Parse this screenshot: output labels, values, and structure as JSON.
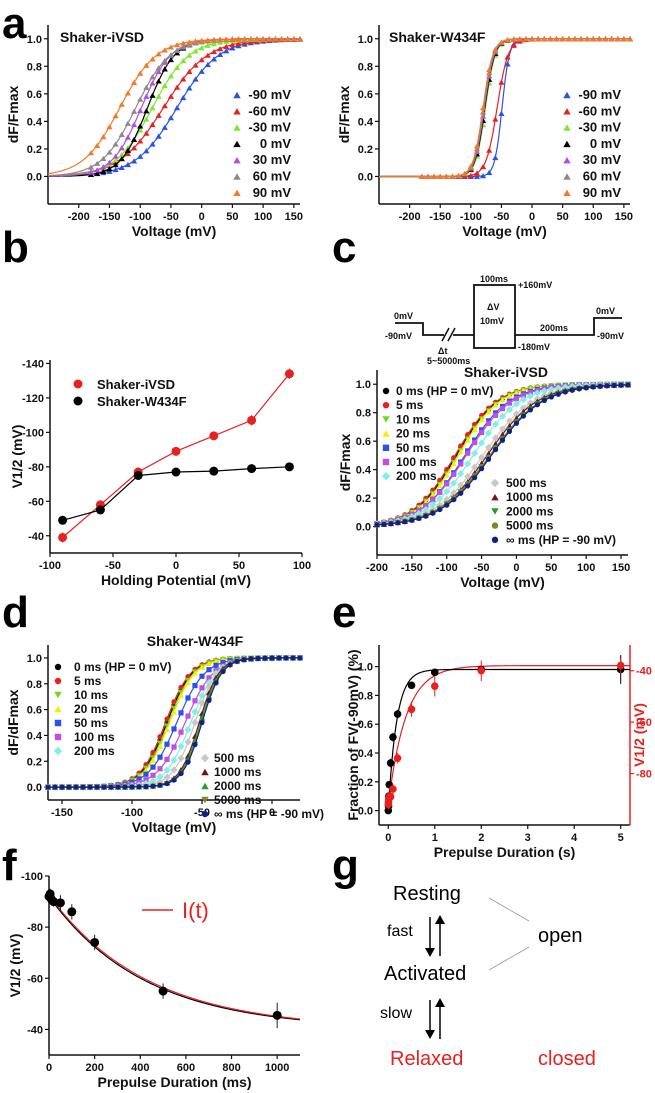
{
  "panel_letters": {
    "a": "a",
    "b": "b",
    "c": "c",
    "d": "d",
    "e": "e",
    "f": "f",
    "g": "g"
  },
  "colors": {
    "blue": "#2a52e8",
    "red": "#e82020",
    "green": "#7ee82a",
    "black": "#000000",
    "purple": "#b24fe0",
    "gray": "#8a8a8a",
    "orange": "#f07a2a",
    "c_black": "#000000",
    "c_red": "#e82020",
    "c_green": "#6dd820",
    "c_yellow": "#f2f200",
    "c_blue": "#2a52e8",
    "c_purple": "#c04ee0",
    "c_cyan": "#7ff0e6",
    "c_lgray": "#c8c8c8",
    "c_darkred": "#7a1010",
    "c_dgreen": "#2a9a2a",
    "c_olive": "#7a8a20",
    "c_navy": "#10208a"
  },
  "chart_data": [
    {
      "id": "a1",
      "type": "scatter",
      "title": "Shaker-iVSD",
      "xlabel": "Voltage (mV)",
      "ylabel": "dF/Fmax",
      "xlim": [
        -250,
        160
      ],
      "ylim": [
        -0.2,
        1.1
      ],
      "xticks": [
        -200,
        -150,
        -100,
        -50,
        0,
        50,
        100,
        150
      ],
      "yticks": [
        0.0,
        0.2,
        0.4,
        0.6,
        0.8,
        1.0
      ],
      "ytick_labels": [
        "0.0",
        "0.2",
        "0.4",
        "0.6",
        "0.8",
        "1.0"
      ],
      "marker": "triangle",
      "legend_position": "right",
      "series": [
        {
          "name": "-90 mV",
          "color": "#2a52e8",
          "v_half": -40,
          "slope": 34
        },
        {
          "name": "-60 mV",
          "color": "#e82020",
          "v_half": -62,
          "slope": 36
        },
        {
          "name": "-30 mV",
          "color": "#7ee82a",
          "v_half": -80,
          "slope": 30
        },
        {
          "name": "0 mV",
          "color": "#000000",
          "v_half": -88,
          "slope": 22
        },
        {
          "name": "30 mV",
          "color": "#b24fe0",
          "v_half": -98,
          "slope": 24
        },
        {
          "name": "60 mV",
          "color": "#8a8a8a",
          "v_half": -107,
          "slope": 28
        },
        {
          "name": "90 mV",
          "color": "#f07a2a",
          "v_half": -133,
          "slope": 30
        }
      ]
    },
    {
      "id": "a2",
      "type": "scatter",
      "title": "Shaker-W434F",
      "xlabel": "Voltage (mV)",
      "ylabel": "dF/Fmax",
      "xlim": [
        -250,
        160
      ],
      "ylim": [
        -0.2,
        1.1
      ],
      "xticks": [
        -200,
        -150,
        -100,
        -50,
        0,
        50,
        100,
        150
      ],
      "yticks": [
        0.0,
        0.2,
        0.4,
        0.6,
        0.8,
        1.0
      ],
      "ytick_labels": [
        "0.0",
        "0.2",
        "0.4",
        "0.6",
        "0.8",
        "1.0"
      ],
      "marker": "triangle",
      "legend_position": "right",
      "series": [
        {
          "name": "-90 mV",
          "color": "#2a52e8",
          "v_half": -49,
          "slope": 6
        },
        {
          "name": "-60 mV",
          "color": "#e82020",
          "v_half": -57,
          "slope": 9
        },
        {
          "name": "-30 mV",
          "color": "#7ee82a",
          "v_half": -76,
          "slope": 8
        },
        {
          "name": "0 mV",
          "color": "#000000",
          "v_half": -77,
          "slope": 8
        },
        {
          "name": "30 mV",
          "color": "#b24fe0",
          "v_half": -78,
          "slope": 8
        },
        {
          "name": "60 mV",
          "color": "#8a8a8a",
          "v_half": -79,
          "slope": 8
        },
        {
          "name": "90 mV",
          "color": "#f07a2a",
          "v_half": -80,
          "slope": 8
        }
      ]
    },
    {
      "id": "b",
      "type": "line",
      "xlabel": "Holding Potential (mV)",
      "ylabel": "V1/2 (mV)",
      "xlim": [
        -100,
        100
      ],
      "ylim": [
        -30,
        -142
      ],
      "xticks": [
        -100,
        -50,
        0,
        50,
        100
      ],
      "yticks": [
        -40,
        -60,
        -80,
        -100,
        -120,
        -140
      ],
      "x": [
        -90,
        -60,
        -30,
        0,
        30,
        60,
        90
      ],
      "legend_position": "top-left",
      "series": [
        {
          "name": "Shaker-iVSD",
          "color": "#e82020",
          "values": [
            -39,
            -58,
            -77,
            -89,
            -98,
            -107,
            -134
          ],
          "err": [
            3,
            2,
            1,
            1,
            1.5,
            3,
            3
          ]
        },
        {
          "name": "Shaker-W434F",
          "color": "#000000",
          "values": [
            -49,
            -55,
            -75,
            -77,
            -77.5,
            -79,
            -80
          ],
          "err": [
            1,
            2,
            1,
            1,
            1,
            1,
            1
          ]
        }
      ]
    },
    {
      "id": "c",
      "type": "scatter",
      "title": "Shaker-iVSD",
      "xlabel": "Voltage (mV)",
      "ylabel": "dF/Fmax",
      "xlim": [
        -200,
        160
      ],
      "ylim": [
        -0.2,
        1.1
      ],
      "xticks": [
        -200,
        -150,
        -100,
        -50,
        0,
        50,
        100,
        150
      ],
      "yticks": [
        0.0,
        0.2,
        0.4,
        0.6,
        0.8,
        1.0
      ],
      "ytick_labels": [
        "0.0",
        "0.2",
        "0.4",
        "0.6",
        "0.8",
        "1.0"
      ],
      "legend_position": "left / bottom-right",
      "series": [
        {
          "name": "0 ms (HP = 0 mV)",
          "color": "#000000",
          "marker": "circle",
          "v_half": -86,
          "slope": 30
        },
        {
          "name": "5 ms",
          "color": "#e82020",
          "marker": "circle",
          "v_half": -88,
          "slope": 30
        },
        {
          "name": "10 ms",
          "color": "#6dd820",
          "marker": "tri-down",
          "v_half": -84,
          "slope": 30
        },
        {
          "name": "20 ms",
          "color": "#f2f200",
          "marker": "triangle",
          "v_half": -83,
          "slope": 30
        },
        {
          "name": "50 ms",
          "color": "#2a52e8",
          "marker": "square",
          "v_half": -74,
          "slope": 32
        },
        {
          "name": "100 ms",
          "color": "#c04ee0",
          "marker": "square",
          "v_half": -72,
          "slope": 33
        },
        {
          "name": "200 ms",
          "color": "#7ff0e6",
          "marker": "diamond",
          "v_half": -62,
          "slope": 34
        },
        {
          "name": "500 ms",
          "color": "#c8c8c8",
          "marker": "diamond",
          "v_half": -48,
          "slope": 36
        },
        {
          "name": "1000 ms",
          "color": "#7a1010",
          "marker": "triangle",
          "v_half": -42,
          "slope": 36
        },
        {
          "name": "2000 ms",
          "color": "#2a9a2a",
          "marker": "tri-down",
          "v_half": -38,
          "slope": 37
        },
        {
          "name": "5000 ms",
          "color": "#7a8a20",
          "marker": "circle",
          "v_half": -38,
          "slope": 38
        },
        {
          "name": "∞ ms (HP = -90 mV)",
          "color": "#10208a",
          "marker": "circle",
          "v_half": -36,
          "slope": 37
        }
      ]
    },
    {
      "id": "d",
      "type": "scatter",
      "title": "Shaker-W434F",
      "xlabel": "Voltage (mV)",
      "ylabel": "dF/dFmax",
      "xlim": [
        -160,
        20
      ],
      "ylim": [
        -0.1,
        1.1
      ],
      "xticks": [
        -150,
        -100,
        -50,
        0
      ],
      "yticks": [
        0.0,
        0.2,
        0.4,
        0.6,
        0.8,
        1.0
      ],
      "ytick_labels": [
        "0.0",
        "0.2",
        "0.4",
        "0.6",
        "0.8",
        "1.0"
      ],
      "legend_position": "left / bottom-right",
      "series": [
        {
          "name": "0 ms (HP = 0 mV)",
          "color": "#000000",
          "marker": "circle",
          "v_half": -75,
          "slope": 9
        },
        {
          "name": "5 ms",
          "color": "#e82020",
          "marker": "circle",
          "v_half": -76,
          "slope": 9
        },
        {
          "name": "10 ms",
          "color": "#6dd820",
          "marker": "tri-down",
          "v_half": -74,
          "slope": 9
        },
        {
          "name": "20 ms",
          "color": "#f2f200",
          "marker": "triangle",
          "v_half": -73,
          "slope": 9
        },
        {
          "name": "50 ms",
          "color": "#2a52e8",
          "marker": "square",
          "v_half": -68,
          "slope": 10
        },
        {
          "name": "100 ms",
          "color": "#c04ee0",
          "marker": "square",
          "v_half": -62,
          "slope": 10
        },
        {
          "name": "200 ms",
          "color": "#7ff0e6",
          "marker": "diamond",
          "v_half": -58,
          "slope": 9
        },
        {
          "name": "500 ms",
          "color": "#c8c8c8",
          "marker": "diamond",
          "v_half": -55,
          "slope": 8
        },
        {
          "name": "1000 ms",
          "color": "#7a1010",
          "marker": "triangle",
          "v_half": -52,
          "slope": 7
        },
        {
          "name": "2000 ms",
          "color": "#2a9a2a",
          "marker": "triangle",
          "v_half": -51,
          "slope": 7
        },
        {
          "name": "5000 ms",
          "color": "#7a8a20",
          "marker": "tri-down",
          "v_half": -50,
          "slope": 7
        },
        {
          "name": "∞ ms (HP = -90 mV)",
          "color": "#10208a",
          "marker": "circle",
          "v_half": -50,
          "slope": 7
        }
      ]
    },
    {
      "id": "e",
      "type": "scatter",
      "xlabel": "Prepulse Duration (s)",
      "ylabel": "Fraction of FV(-90mV) (%)",
      "ylabel_right": "V1/2 (mV)",
      "xlim": [
        -0.2,
        5.2
      ],
      "ylim": [
        -0.1,
        1.15
      ],
      "ylim_right": [
        -100,
        -30
      ],
      "xticks": [
        0,
        1,
        2,
        3,
        4,
        5
      ],
      "yticks": [
        0.0,
        0.2,
        0.4,
        0.6,
        0.8,
        1.0
      ],
      "ytick_labels": [
        "0.0",
        "0.2",
        "0.4",
        "0.6",
        "0.8",
        "1.0"
      ],
      "yticks_right": [
        -40,
        -60,
        -80
      ],
      "series": [
        {
          "name": "Fraction of FV",
          "axis": "left",
          "color": "#000000",
          "x": [
            0,
            0.005,
            0.01,
            0.02,
            0.05,
            0.1,
            0.2,
            0.5,
            1,
            2,
            5
          ],
          "values": [
            0.0,
            0.03,
            0.1,
            0.18,
            0.33,
            0.51,
            0.67,
            0.87,
            0.96,
            0.98,
            0.98
          ],
          "err": [
            0.02,
            0.02,
            0.02,
            0.02,
            0.03,
            0.03,
            0.03,
            0.02,
            0.02,
            0.02,
            0.1
          ]
        },
        {
          "name": "V1/2",
          "axis": "right",
          "color": "#e82020",
          "x": [
            0,
            0.005,
            0.01,
            0.02,
            0.05,
            0.1,
            0.2,
            0.5,
            1,
            2,
            5
          ],
          "values": [
            -92,
            -91,
            -90,
            -89,
            -89,
            -86,
            -74,
            -55,
            -46,
            -40,
            -38
          ],
          "err": [
            2,
            2,
            2,
            2,
            2,
            2,
            2,
            3,
            4,
            4,
            3
          ]
        }
      ]
    },
    {
      "id": "f",
      "type": "scatter",
      "xlabel": "Prepulse Duration (ms)",
      "ylabel": "V1/2 (mV)",
      "xlim": [
        0,
        1100
      ],
      "ylim": [
        -30,
        -100
      ],
      "xticks": [
        0,
        200,
        400,
        600,
        800,
        1000
      ],
      "yticks": [
        -40,
        -60,
        -80,
        -100
      ],
      "legend": "I(t)",
      "legend_color": "#e82020",
      "legend_position": "top-center",
      "x": [
        0,
        5,
        10,
        20,
        50,
        100,
        200,
        500,
        1000
      ],
      "values": [
        -92,
        -93,
        -91,
        -90,
        -89.5,
        -86,
        -74,
        -55,
        -45.5
      ],
      "err": [
        2,
        2,
        2,
        2,
        3,
        3,
        3,
        3,
        5
      ]
    }
  ],
  "protocol": {
    "labels": {
      "top_left": "0mV",
      "bottom_left": "-90mV",
      "dt": "Δt",
      "dt_range": "5~5000ms",
      "pulse_dur": "100ms",
      "pulse_max": "+160mV",
      "dv": "ΔV",
      "dv_step": "10mV",
      "pulse_min": "-180mV",
      "tail": "200ms",
      "top_right": "0mV",
      "bottom_right": "-90mV"
    }
  },
  "scheme": {
    "resting": "Resting",
    "activated": "Activated",
    "relaxed": "Relaxed",
    "fast": "fast",
    "slow": "slow",
    "open": "open",
    "closed": "closed"
  }
}
